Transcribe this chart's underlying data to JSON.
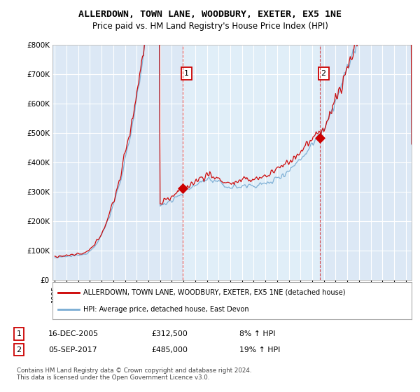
{
  "title": "ALLERDOWN, TOWN LANE, WOODBURY, EXETER, EX5 1NE",
  "subtitle": "Price paid vs. HM Land Registry's House Price Index (HPI)",
  "background_color": "#ffffff",
  "plot_background": "#dce8f5",
  "grid_color": "#ffffff",
  "yticks": [
    0,
    100000,
    200000,
    300000,
    400000,
    500000,
    600000,
    700000,
    800000
  ],
  "ytick_labels": [
    "£0",
    "£100K",
    "£200K",
    "£300K",
    "£400K",
    "£500K",
    "£600K",
    "£700K",
    "£800K"
  ],
  "ylim": [
    0,
    800000
  ],
  "xlim_start": 1994.8,
  "xlim_end": 2025.5,
  "xticks": [
    1995,
    1996,
    1997,
    1998,
    1999,
    2000,
    2001,
    2002,
    2003,
    2004,
    2005,
    2006,
    2007,
    2008,
    2009,
    2010,
    2011,
    2012,
    2013,
    2014,
    2015,
    2016,
    2017,
    2018,
    2019,
    2020,
    2021,
    2022,
    2023,
    2024,
    2025
  ],
  "sale1_x": 2005.96,
  "sale1_y": 312500,
  "sale1_label": "1",
  "sale2_x": 2017.67,
  "sale2_y": 485000,
  "sale2_label": "2",
  "vline1_x": 2005.96,
  "vline2_x": 2017.67,
  "legend_line1": "ALLERDOWN, TOWN LANE, WOODBURY, EXETER, EX5 1NE (detached house)",
  "legend_line2": "HPI: Average price, detached house, East Devon",
  "table_row1_num": "1",
  "table_row1_date": "16-DEC-2005",
  "table_row1_price": "£312,500",
  "table_row1_hpi": "8% ↑ HPI",
  "table_row2_num": "2",
  "table_row2_date": "05-SEP-2017",
  "table_row2_price": "£485,000",
  "table_row2_hpi": "19% ↑ HPI",
  "footer": "Contains HM Land Registry data © Crown copyright and database right 2024.\nThis data is licensed under the Open Government Licence v3.0.",
  "red_color": "#cc0000",
  "blue_color": "#7aadd4",
  "highlight_color": "#e0eef8",
  "title_fontsize": 9.5,
  "subtitle_fontsize": 8.5
}
